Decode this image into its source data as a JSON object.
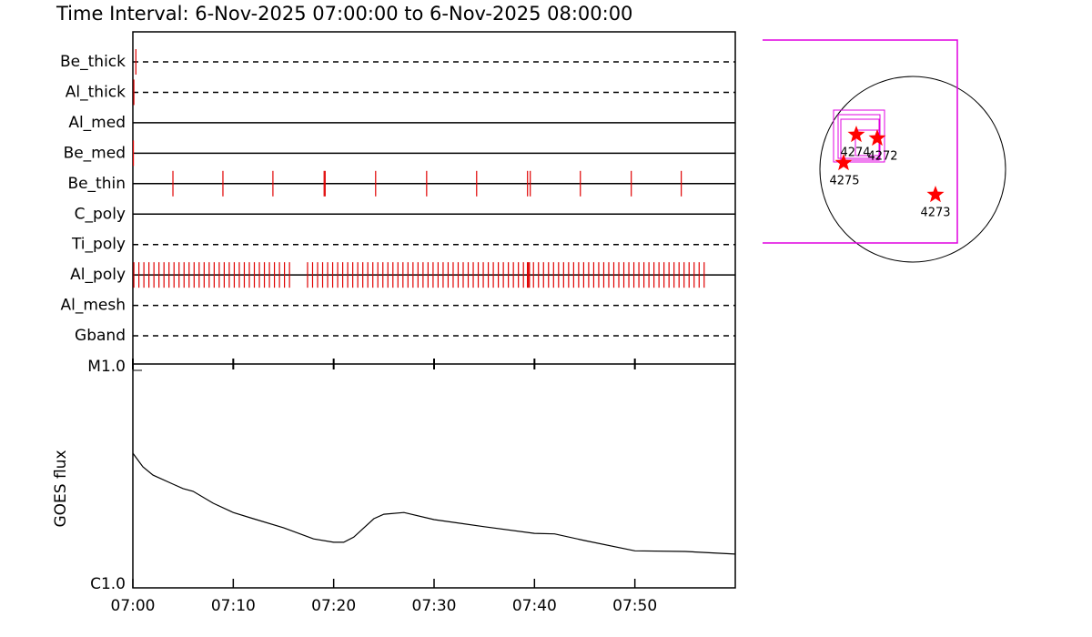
{
  "title": "Time Interval:  6-Nov-2025 07:00:00 to  6-Nov-2025 08:00:00",
  "chart_data": [
    {
      "type": "timeline",
      "color": "#e00000",
      "xlim": [
        0,
        60
      ],
      "rows": [
        {
          "name": "Be_thick",
          "style": "dashed",
          "times": [
            0.3
          ]
        },
        {
          "name": "Al_thick",
          "style": "dashed",
          "times": [
            0.1
          ]
        },
        {
          "name": "Al_med",
          "style": "solid",
          "times": []
        },
        {
          "name": "Be_med",
          "style": "solid",
          "times": [
            0.05
          ]
        },
        {
          "name": "Be_thin",
          "style": "solid",
          "times": [
            3.99,
            8.97,
            13.95,
            19.05,
            19.15,
            24.18,
            29.26,
            34.24,
            39.31,
            39.58,
            44.57,
            49.64,
            54.62
          ]
        },
        {
          "name": "C_poly",
          "style": "solid",
          "times": []
        },
        {
          "name": "Ti_poly",
          "style": "dashed",
          "times": []
        },
        {
          "name": "Al_poly",
          "style": "solid",
          "times": [
            0.1,
            0.6,
            1.1,
            1.6,
            2.1,
            2.6,
            3.1,
            3.6,
            4.1,
            4.6,
            5.1,
            5.6,
            6.1,
            6.6,
            7.1,
            7.6,
            8.1,
            8.6,
            9.1,
            9.6,
            10.1,
            10.6,
            11.1,
            11.6,
            12.1,
            12.6,
            13.1,
            13.6,
            14.1,
            14.6,
            15.1,
            15.6,
            17.4,
            17.9,
            18.4,
            18.9,
            19.4,
            19.9,
            20.4,
            20.9,
            21.4,
            21.9,
            22.4,
            22.9,
            23.4,
            23.9,
            24.4,
            24.9,
            25.4,
            25.9,
            26.4,
            26.9,
            27.4,
            27.9,
            28.4,
            28.9,
            29.4,
            29.9,
            30.4,
            30.9,
            31.4,
            31.9,
            32.4,
            32.9,
            33.4,
            33.9,
            34.4,
            34.9,
            35.4,
            35.9,
            36.4,
            36.9,
            37.4,
            37.9,
            38.4,
            38.9,
            39.3,
            39.4,
            39.5,
            39.9,
            40.4,
            40.9,
            41.4,
            41.9,
            42.4,
            42.9,
            43.4,
            43.9,
            44.4,
            44.9,
            45.4,
            45.9,
            46.4,
            46.9,
            47.4,
            47.9,
            48.4,
            48.9,
            49.4,
            49.9,
            50.4,
            50.9,
            51.4,
            51.9,
            52.4,
            52.9,
            53.4,
            53.9,
            54.4,
            54.9,
            55.4,
            55.9,
            56.4,
            56.9
          ]
        },
        {
          "name": "Al_mesh",
          "style": "dashed",
          "times": []
        },
        {
          "name": "Gband",
          "style": "dashed",
          "times": []
        }
      ]
    },
    {
      "type": "line",
      "ylabel": "GOES flux",
      "color": "#000000",
      "log_y": true,
      "xlim": [
        0,
        60
      ],
      "xticks": [
        {
          "value": 0,
          "label": "07:00"
        },
        {
          "value": 10,
          "label": "07:10"
        },
        {
          "value": 20,
          "label": "07:20"
        },
        {
          "value": 30,
          "label": "07:30"
        },
        {
          "value": 40,
          "label": "07:40"
        },
        {
          "value": 50,
          "label": "07:50"
        }
      ],
      "ylim": [
        1e-06,
        1e-05
      ],
      "yticks": [
        {
          "value": 1e-06,
          "label": "C1.0"
        },
        {
          "value": 1e-05,
          "label": "M1.0"
        }
      ],
      "x": [
        0,
        1,
        2,
        4,
        5,
        6,
        8,
        10,
        12,
        15,
        18,
        20,
        21,
        22,
        24,
        25,
        27,
        30,
        35,
        40,
        42,
        45,
        50,
        55,
        60
      ],
      "values": [
        4.16e-06,
        3.6e-06,
        3.3e-06,
        3e-06,
        2.86e-06,
        2.78e-06,
        2.45e-06,
        2.22e-06,
        2.08e-06,
        1.89e-06,
        1.68e-06,
        1.62e-06,
        1.62e-06,
        1.71e-06,
        2.08e-06,
        2.18e-06,
        2.22e-06,
        2.06e-06,
        1.91e-06,
        1.78e-06,
        1.77e-06,
        1.65e-06,
        1.48e-06,
        1.47e-06,
        1.43e-06
      ]
    }
  ],
  "map": {
    "regions": [
      "4274",
      "4272",
      "4275",
      "4273"
    ]
  }
}
